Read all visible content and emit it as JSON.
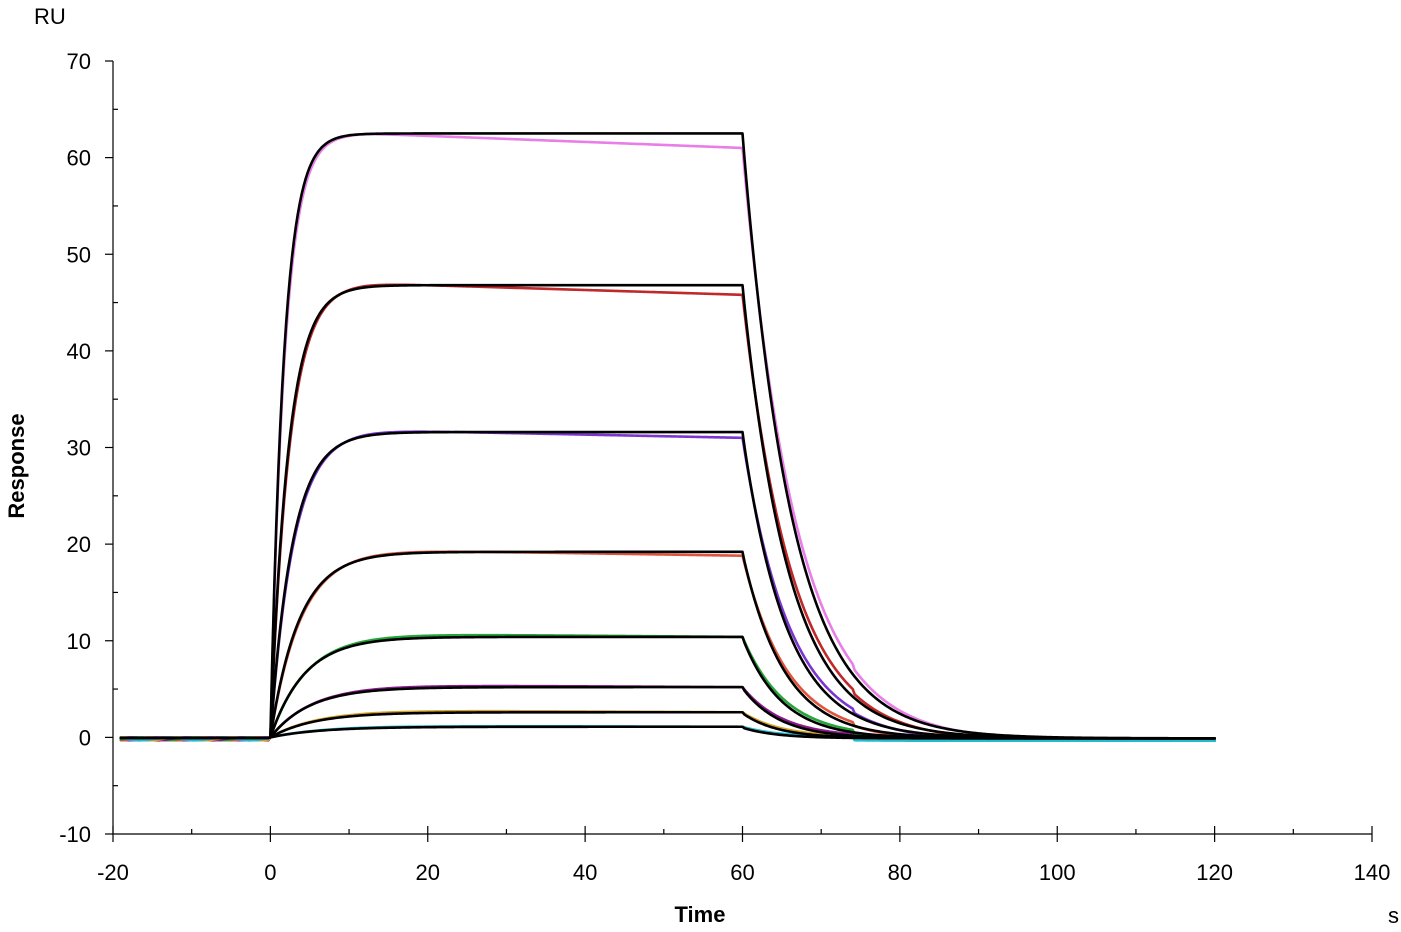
{
  "chart_data": {
    "type": "line",
    "title": "",
    "xlabel": "Time",
    "ylabel": "Response",
    "x_unit": "s",
    "y_unit": "RU",
    "xlim": [
      -20,
      140
    ],
    "ylim": [
      -10,
      70
    ],
    "x_ticks": [
      -20,
      0,
      20,
      40,
      60,
      80,
      100,
      120,
      140
    ],
    "y_ticks": [
      -10,
      0,
      10,
      20,
      30,
      40,
      50,
      60,
      70
    ],
    "x_minor_step": 10,
    "y_minor_step": 5,
    "grid": false,
    "legend": "none",
    "injection_start": 0,
    "injection_end": 60,
    "series_end": 120,
    "series": [
      {
        "color": "#e87ee8",
        "plateau": 62.5,
        "fit_plateau": 62.5,
        "drift": -1.5,
        "ka": 0.55,
        "kd": 0.16
      },
      {
        "color": "#c0282a",
        "plateau": 47.0,
        "fit_plateau": 46.8,
        "drift": -1.2,
        "ka": 0.42,
        "kd": 0.17
      },
      {
        "color": "#7b35d1",
        "plateau": 31.8,
        "fit_plateau": 31.6,
        "drift": -0.8,
        "ka": 0.34,
        "kd": 0.18
      },
      {
        "color": "#e0543e",
        "plateau": 19.4,
        "fit_plateau": 19.2,
        "drift": -0.6,
        "ka": 0.26,
        "kd": 0.19
      },
      {
        "color": "#26a53a",
        "plateau": 10.7,
        "fit_plateau": 10.4,
        "drift": -0.3,
        "ka": 0.22,
        "kd": 0.2
      },
      {
        "color": "#8a1a8e",
        "plateau": 5.4,
        "fit_plateau": 5.2,
        "drift": -0.2,
        "ka": 0.19,
        "kd": 0.21
      },
      {
        "color": "#d6a12a",
        "plateau": 2.8,
        "fit_plateau": 2.6,
        "drift": -0.2,
        "ka": 0.17,
        "kd": 0.22
      },
      {
        "color": "#22bcd0",
        "plateau": 1.2,
        "fit_plateau": 1.1,
        "drift": -0.1,
        "ka": 0.15,
        "kd": 0.23
      }
    ],
    "fit_color": "#000000"
  }
}
